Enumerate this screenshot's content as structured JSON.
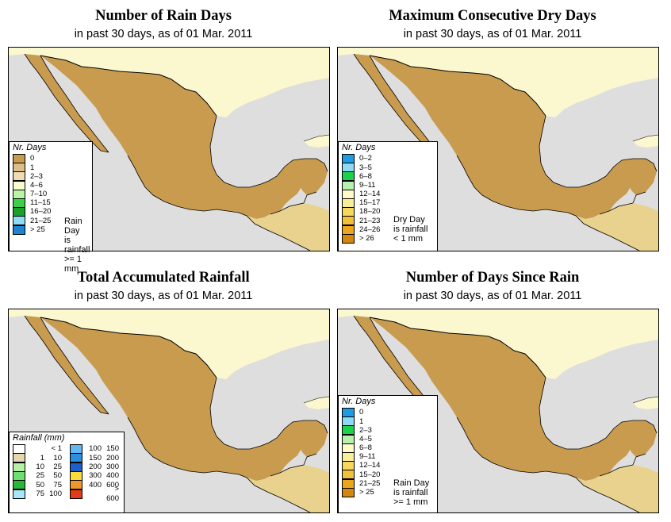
{
  "panels": [
    {
      "title": "Number of Rain Days",
      "subtitle": "in past 30 days, as of  01 Mar. 2011",
      "legend": {
        "title": "Nr. Days",
        "items": [
          {
            "label": "0",
            "color": "#c79c4f"
          },
          {
            "label": "1",
            "color": "#dcbf86"
          },
          {
            "label": "2–3",
            "color": "#efdcb2"
          },
          {
            "label": "4–6",
            "color": "#fafad0"
          },
          {
            "label": "7–10",
            "color": "#b9f5a4"
          },
          {
            "label": "11–15",
            "color": "#3cd04a"
          },
          {
            "label": "16–20",
            "color": "#1aa12a"
          },
          {
            "label": "21–25",
            "color": "#8fdcf6"
          },
          {
            "label": "> 25",
            "color": "#1f82d2"
          }
        ]
      },
      "note": "Rain Day\nis rainfall\n>= 1 mm"
    },
    {
      "title": "Maximum Consecutive Dry Days",
      "subtitle": "in past 30 days, as of  01 Mar. 2011",
      "legend": {
        "title": "Nr. Days",
        "items": [
          {
            "label": "0–2",
            "color": "#1f9be2"
          },
          {
            "label": "3–5",
            "color": "#8fd9f4"
          },
          {
            "label": "6–8",
            "color": "#1bd24c"
          },
          {
            "label": "9–11",
            "color": "#b7f1b0"
          },
          {
            "label": "12–14",
            "color": "#fdfbc8"
          },
          {
            "label": "15–17",
            "color": "#f9ef98"
          },
          {
            "label": "18–20",
            "color": "#f6d85e"
          },
          {
            "label": "21–23",
            "color": "#f2c13c"
          },
          {
            "label": "24–26",
            "color": "#eba51f"
          },
          {
            "label": "> 26",
            "color": "#d48610"
          }
        ]
      },
      "note": "Dry Day\nis rainfall\n< 1 mm"
    },
    {
      "title": "Total Accumulated Rainfall",
      "subtitle": "in past 30 days, as of  01 Mar. 2011",
      "legend": {
        "title": "Rainfall (mm)",
        "left": [
          {
            "lo": "",
            "hi": "< 1",
            "color": "#ffffff"
          },
          {
            "lo": "1",
            "hi": "10",
            "color": "#e6d6b0"
          },
          {
            "lo": "10",
            "hi": "25",
            "color": "#b7f1a7"
          },
          {
            "lo": "25",
            "hi": "50",
            "color": "#6fe06f"
          },
          {
            "lo": "50",
            "hi": "75",
            "color": "#29b837"
          },
          {
            "lo": "75",
            "hi": "100",
            "color": "#a9e7f8"
          }
        ],
        "right": [
          {
            "lo": "100",
            "hi": "150",
            "color": "#64b8f1"
          },
          {
            "lo": "150",
            "hi": "200",
            "color": "#2b8fe2"
          },
          {
            "lo": "200",
            "hi": "300",
            "color": "#1e5fcc"
          },
          {
            "lo": "300",
            "hi": "400",
            "color": "#f7dc3a"
          },
          {
            "lo": "400",
            "hi": "600",
            "color": "#f2962a"
          },
          {
            "lo": "",
            "hi": "> 600",
            "color": "#e53a18"
          }
        ]
      }
    },
    {
      "title": "Number of Days Since Rain",
      "subtitle": "in past 30 days, as of  01 Mar. 2011",
      "legend": {
        "title": "Nr. Days",
        "items": [
          {
            "label": "0",
            "color": "#1f9be2"
          },
          {
            "label": "1",
            "color": "#8fd9f4"
          },
          {
            "label": "2–3",
            "color": "#1bd24c"
          },
          {
            "label": "4–5",
            "color": "#b7f1b0"
          },
          {
            "label": "6–8",
            "color": "#fdfbc8"
          },
          {
            "label": "9–11",
            "color": "#f9ef98"
          },
          {
            "label": "12–14",
            "color": "#f6d85e"
          },
          {
            "label": "15–20",
            "color": "#f2c13c"
          },
          {
            "label": "21–25",
            "color": "#eba51f"
          },
          {
            "label": "> 25",
            "color": "#d48610"
          }
        ]
      },
      "note": "Rain Day\nis rainfall\n>= 1 mm"
    }
  ],
  "map_colors": {
    "ocean": "#dedede",
    "other_land": [
      "#fbf7cf",
      "#f3efc2",
      "#f8f3c9",
      "#f5e8b8",
      "#fbf7cf"
    ],
    "mexico": [
      "#c89b4f",
      "#c89b4f",
      "#c89b4f",
      "#d8b879",
      "#e6cc96",
      "#c89b4f",
      "#b9f5a4",
      "#d8b879"
    ]
  }
}
